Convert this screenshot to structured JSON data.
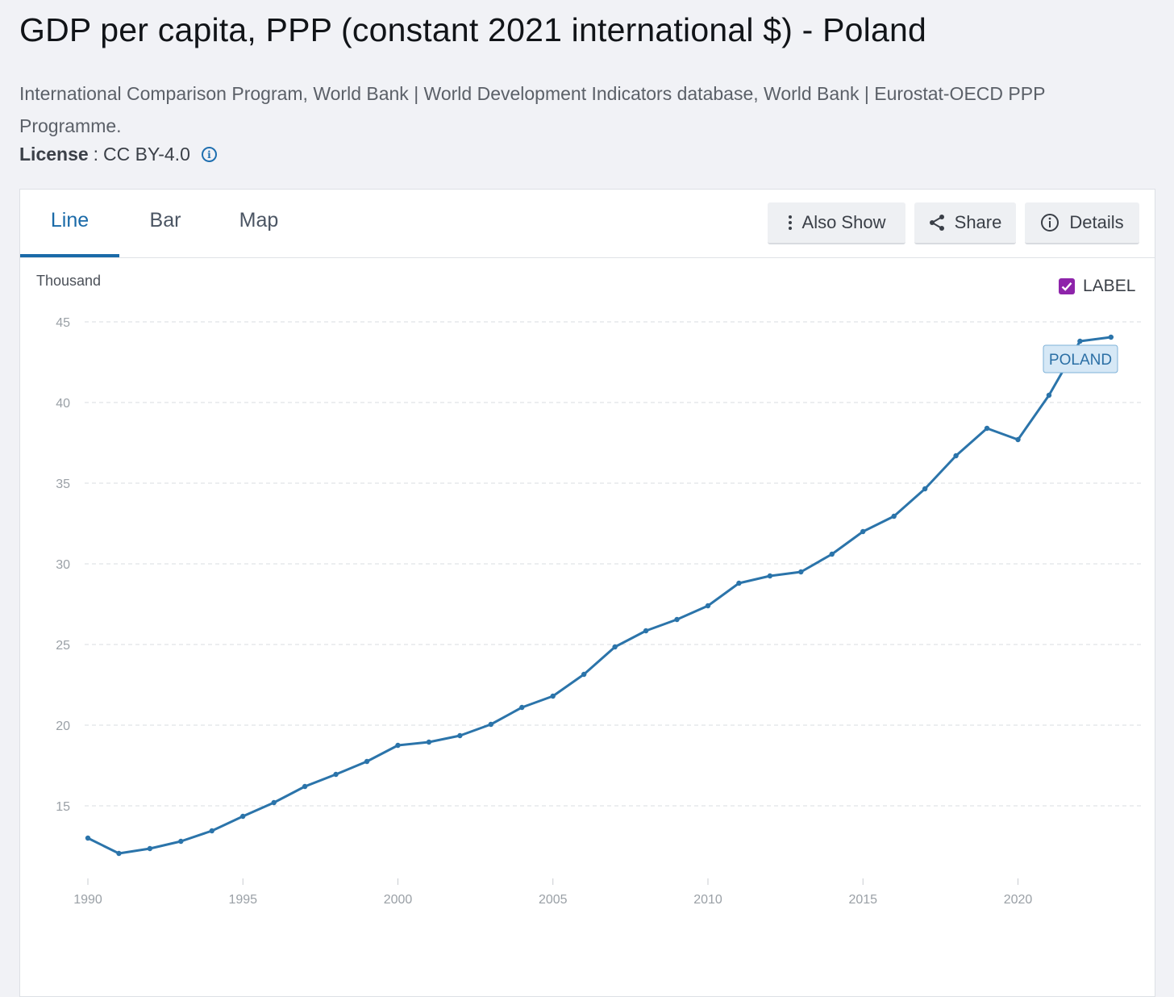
{
  "header": {
    "title": "GDP per capita, PPP (constant 2021 international $) - Poland",
    "source": "International Comparison Program, World Bank | World Development Indicators database, World Bank | Eurostat-OECD PPP Programme.",
    "license_label": "License",
    "license_sep": ":",
    "license_value": "CC BY-4.0"
  },
  "tabs": [
    {
      "label": "Line",
      "active": true
    },
    {
      "label": "Bar",
      "active": false
    },
    {
      "label": "Map",
      "active": false
    }
  ],
  "toolbar": {
    "also_show": "Also Show",
    "share": "Share",
    "details": "Details"
  },
  "legend_toggle": {
    "label": "LABEL",
    "checked": true
  },
  "colors": {
    "line": "#2b74aa",
    "accent": "#1a6aa8",
    "checkbox": "#8e24aa",
    "label_bg": "#d6e8f6"
  },
  "chart_data": {
    "type": "line",
    "ylabel": "Thousand",
    "ylim": [
      11,
      45
    ],
    "yticks": [
      15,
      20,
      25,
      30,
      35,
      40,
      45
    ],
    "xticks": [
      1990,
      1995,
      2000,
      2005,
      2010,
      2015,
      2020
    ],
    "grid": true,
    "series": [
      {
        "name": "POLAND",
        "x": [
          1990,
          1991,
          1992,
          1993,
          1994,
          1995,
          1996,
          1997,
          1998,
          1999,
          2000,
          2001,
          2002,
          2003,
          2004,
          2005,
          2006,
          2007,
          2008,
          2009,
          2010,
          2011,
          2012,
          2013,
          2014,
          2015,
          2016,
          2017,
          2018,
          2019,
          2020,
          2021,
          2022,
          2023
        ],
        "values": [
          13.0,
          12.05,
          12.35,
          12.8,
          13.45,
          14.35,
          15.2,
          16.2,
          16.95,
          17.75,
          18.75,
          18.95,
          19.35,
          20.05,
          21.1,
          21.8,
          23.15,
          24.85,
          25.85,
          26.55,
          27.4,
          28.8,
          29.25,
          29.5,
          30.6,
          32.0,
          32.95,
          34.65,
          36.7,
          38.4,
          37.7,
          40.45,
          43.8,
          44.05
        ]
      }
    ]
  }
}
